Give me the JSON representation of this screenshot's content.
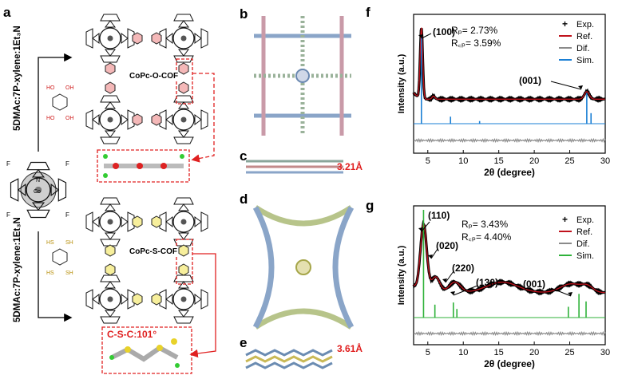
{
  "panels": {
    "a": "a",
    "b": "b",
    "c": "c",
    "d": "d",
    "e": "e",
    "f": "f",
    "g": "g"
  },
  "panel_a": {
    "top_condition": "5DMAc:7P-xylene:1Et₃N",
    "bottom_condition": "5DMAc:7P-xylene:1Et₃N",
    "top_cof": "CoPc-O-COF",
    "bottom_cof": "CoPc-S-COF",
    "top_linker": {
      "top_left": "HO",
      "top_right": "OH",
      "bottom_left": "HO",
      "bottom_right": "OH"
    },
    "bottom_linker": {
      "top_left": "HS",
      "top_right": "SH",
      "bottom_left": "HS",
      "bottom_right": "SH"
    },
    "bond_angle_label": "C-S-C:101°",
    "monomer_atoms": {
      "fluorine": "F",
      "nitrogen": "N",
      "cobalt": "Co"
    }
  },
  "panel_c": {
    "spacing": "3.21Å"
  },
  "panel_e": {
    "spacing": "3.61Å"
  },
  "chart_data": [
    {
      "panel": "f",
      "type": "line",
      "xlabel": "2θ (degree)",
      "ylabel": "Intensity (a.u.)",
      "xlim": [
        3,
        30
      ],
      "xticks": [
        5,
        10,
        15,
        20,
        25,
        30
      ],
      "stats": {
        "rp": "Rₚ= 2.73%",
        "rwp": "R꜀ₚ= 3.59%"
      },
      "legend": [
        "Exp.",
        "Ref.",
        "Dif.",
        "Sim."
      ],
      "annotations": [
        {
          "label": "(100)",
          "x": 4.1
        },
        {
          "label": "(001)",
          "x": 27.4
        }
      ],
      "series": [
        {
          "name": "Exp.",
          "style": "marker",
          "color": "#000000"
        },
        {
          "name": "Ref.",
          "style": "line",
          "color": "#c0121c",
          "peaks": [
            {
              "x": 4.1,
              "h": 0.95,
              "w": 0.18
            },
            {
              "x": 5.8,
              "h": 0.04,
              "w": 0.2
            },
            {
              "x": 27.4,
              "h": 0.1,
              "w": 0.35
            }
          ],
          "baseline": 0.06
        },
        {
          "name": "Dif.",
          "style": "line",
          "color": "#8a8a8a"
        },
        {
          "name": "Sim.",
          "style": "line",
          "color": "#1a7fd4",
          "sticks": [
            {
              "x": 4.1,
              "h": 1.0
            },
            {
              "x": 8.2,
              "h": 0.08
            },
            {
              "x": 12.3,
              "h": 0.03
            },
            {
              "x": 27.4,
              "h": 0.35
            },
            {
              "x": 28.0,
              "h": 0.12
            }
          ]
        }
      ]
    },
    {
      "panel": "g",
      "type": "line",
      "xlabel": "2θ (degree)",
      "ylabel": "Intensity (a.u.)",
      "xlim": [
        3,
        30
      ],
      "xticks": [
        5,
        10,
        15,
        20,
        25,
        30
      ],
      "stats": {
        "rp": "Rₚ= 3.43%",
        "rwp": "R꜀ₚ= 4.40%"
      },
      "legend": [
        "Exp.",
        "Ref.",
        "Dif.",
        "Sim."
      ],
      "annotations": [
        {
          "label": "(110)",
          "x": 4.4
        },
        {
          "label": "(020)",
          "x": 6.1
        },
        {
          "label": "(220)",
          "x": 8.8
        },
        {
          "label": "(130)",
          "x": 9.9
        },
        {
          "label": "(001)",
          "x": 25.2
        }
      ],
      "series": [
        {
          "name": "Exp.",
          "style": "marker",
          "color": "#000000"
        },
        {
          "name": "Ref.",
          "style": "line",
          "color": "#c0121c",
          "peaks": [
            {
              "x": 4.4,
              "h": 0.78,
              "w": 0.45
            },
            {
              "x": 6.1,
              "h": 0.18,
              "w": 0.6
            },
            {
              "x": 8.8,
              "h": 0.12,
              "w": 0.8
            },
            {
              "x": 15.5,
              "h": 0.12,
              "w": 2.2
            },
            {
              "x": 25.2,
              "h": 0.1,
              "w": 1.5
            },
            {
              "x": 27.5,
              "h": 0.06,
              "w": 0.8
            }
          ],
          "baseline": 0.12
        },
        {
          "name": "Dif.",
          "style": "line",
          "color": "#8a8a8a"
        },
        {
          "name": "Sim.",
          "style": "line",
          "color": "#2fb23a",
          "sticks": [
            {
              "x": 4.4,
              "h": 1.0
            },
            {
              "x": 6.0,
              "h": 0.12
            },
            {
              "x": 8.6,
              "h": 0.14
            },
            {
              "x": 9.1,
              "h": 0.08
            },
            {
              "x": 24.8,
              "h": 0.1
            },
            {
              "x": 26.3,
              "h": 0.22
            },
            {
              "x": 27.3,
              "h": 0.15
            }
          ]
        }
      ]
    }
  ]
}
